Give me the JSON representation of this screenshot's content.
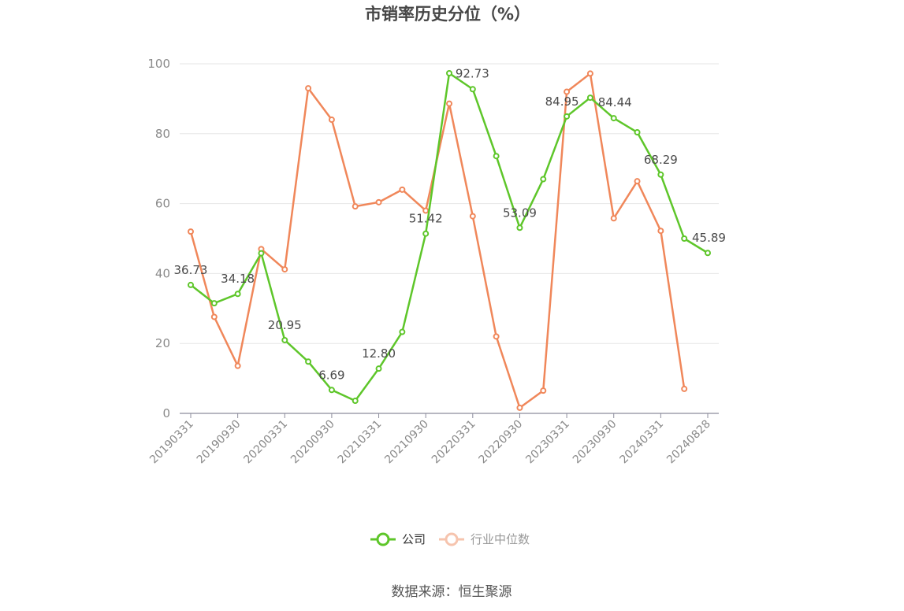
{
  "title": "市销率历史分位（%）",
  "source": "数据来源：恒生聚源",
  "chart_data": {
    "type": "line",
    "title": "市销率历史分位（%）",
    "ylim": [
      0,
      100
    ],
    "yticks": [
      0,
      20,
      40,
      60,
      80,
      100
    ],
    "grid": true,
    "legend_position": "bottom",
    "x": [
      "20190331",
      "20190630",
      "20190930",
      "20191231",
      "20200331",
      "20200630",
      "20200930",
      "20201231",
      "20210331",
      "20210630",
      "20210930",
      "20211231",
      "20220331",
      "20220630",
      "20220930",
      "20221231",
      "20230331",
      "20230630",
      "20230930",
      "20231231",
      "20240331",
      "20240630",
      "20240828"
    ],
    "xtick_labels": [
      "20190331",
      "20190930",
      "20200331",
      "20200930",
      "20210331",
      "20210930",
      "20220331",
      "20220930",
      "20230331",
      "20230930",
      "20240331",
      "20240828"
    ],
    "series": [
      {
        "name": "公司",
        "color": "#5ec62a",
        "values": [
          36.73,
          31.5,
          34.18,
          45.8,
          20.95,
          14.8,
          6.69,
          3.6,
          12.8,
          23.3,
          51.42,
          97.3,
          92.73,
          73.6,
          53.09,
          67.0,
          84.95,
          90.3,
          84.44,
          80.4,
          68.29,
          50.0,
          45.89
        ],
        "labels": [
          "36.73",
          "",
          "34.18",
          "",
          "20.95",
          "",
          "6.69",
          "",
          "12.80",
          "",
          "51.42",
          "",
          "92.73",
          "",
          "53.09",
          "",
          "84.95",
          "",
          "84.44",
          "",
          "68.29",
          "",
          "45.89"
        ]
      },
      {
        "name": "行业中位数",
        "color": "#f0875a",
        "values": [
          52.0,
          27.6,
          13.6,
          47.0,
          41.2,
          93.0,
          84.0,
          59.2,
          60.4,
          64.0,
          58.0,
          88.6,
          56.4,
          22.0,
          1.6,
          6.5,
          92.0,
          97.2,
          55.8,
          66.4,
          52.2,
          7.0,
          null
        ],
        "labels": []
      }
    ]
  }
}
